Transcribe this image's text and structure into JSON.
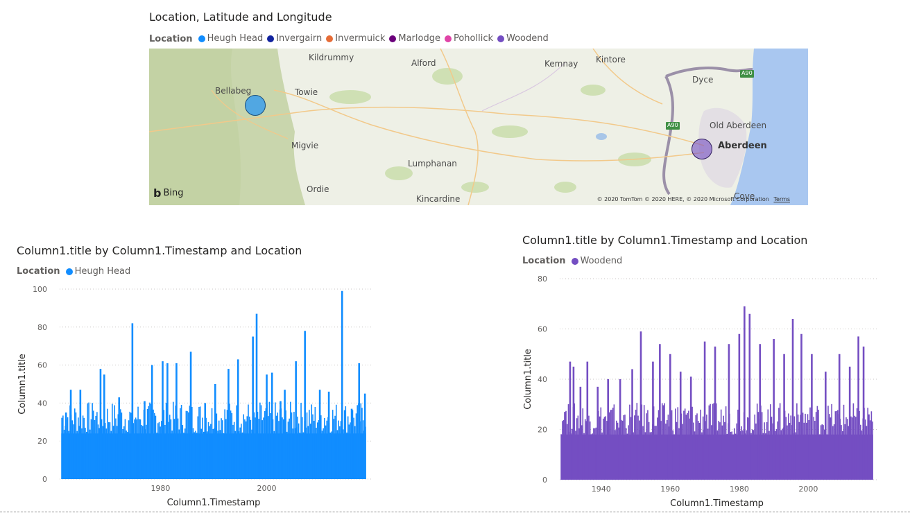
{
  "map_visual": {
    "title": "Location, Latitude and Longitude",
    "legend_title": "Location",
    "legend": [
      {
        "label": "Heugh Head",
        "color": "#118DFF"
      },
      {
        "label": "Invergairn",
        "color": "#12239E"
      },
      {
        "label": "Invermuick",
        "color": "#E66C37"
      },
      {
        "label": "Marlodge",
        "color": "#6B007B"
      },
      {
        "label": "Pohollick",
        "color": "#E044A7"
      },
      {
        "label": "Woodend",
        "color": "#744EC2"
      }
    ],
    "places": [
      "Kildrummy",
      "Alford",
      "Kemnay",
      "Kintore",
      "Bellabeg",
      "Towie",
      "Dyce",
      "Old Aberdeen",
      "Aberdeen",
      "Migvie",
      "Lumphanan",
      "Ordie",
      "Kincardine",
      "Cove"
    ],
    "road_badges": [
      "A90",
      "A90"
    ],
    "bing_label": "Bing",
    "copyright": "© 2020 TomTom © 2020 HERE, © 2020 Microsoft Corporation",
    "terms": "Terms"
  },
  "chart_data": [
    {
      "type": "bar",
      "title": "Column1.title by Column1.Timestamp and Location",
      "legend_title": "Location",
      "series": [
        {
          "name": "Heugh Head",
          "color": "#118DFF"
        }
      ],
      "xlabel": "Column1.Timestamp",
      "ylabel": "Column1.title",
      "xlim": [
        1961,
        2019
      ],
      "ylim": [
        0,
        100
      ],
      "xticks": [
        1980,
        2000
      ],
      "yticks": [
        0,
        20,
        40,
        60,
        80,
        100
      ],
      "baseline": 24,
      "peaks": [
        {
          "x": 1962.2,
          "y": 35
        },
        {
          "x": 1963.1,
          "y": 47
        },
        {
          "x": 1964.9,
          "y": 47
        },
        {
          "x": 1967.3,
          "y": 36
        },
        {
          "x": 1968.7,
          "y": 58
        },
        {
          "x": 1969.4,
          "y": 55
        },
        {
          "x": 1972.2,
          "y": 43
        },
        {
          "x": 1974.7,
          "y": 82
        },
        {
          "x": 1977.0,
          "y": 41
        },
        {
          "x": 1978.4,
          "y": 60
        },
        {
          "x": 1980.4,
          "y": 62
        },
        {
          "x": 1981.3,
          "y": 61
        },
        {
          "x": 1983.0,
          "y": 61
        },
        {
          "x": 1985.7,
          "y": 67
        },
        {
          "x": 1988.4,
          "y": 40
        },
        {
          "x": 1990.3,
          "y": 50
        },
        {
          "x": 1992.8,
          "y": 58
        },
        {
          "x": 1994.6,
          "y": 63
        },
        {
          "x": 1997.4,
          "y": 75
        },
        {
          "x": 1998.1,
          "y": 87
        },
        {
          "x": 2000.0,
          "y": 55
        },
        {
          "x": 2001.0,
          "y": 56
        },
        {
          "x": 2002.6,
          "y": 41
        },
        {
          "x": 2003.4,
          "y": 47
        },
        {
          "x": 2005.5,
          "y": 62
        },
        {
          "x": 2007.2,
          "y": 78
        },
        {
          "x": 2010.0,
          "y": 47
        },
        {
          "x": 2011.7,
          "y": 46
        },
        {
          "x": 2014.2,
          "y": 99
        },
        {
          "x": 2016.0,
          "y": 37
        },
        {
          "x": 2017.4,
          "y": 61
        },
        {
          "x": 2018.5,
          "y": 45
        }
      ]
    },
    {
      "type": "bar",
      "title": "Column1.title by Column1.Timestamp and Location",
      "legend_title": "Location",
      "series": [
        {
          "name": "Woodend",
          "color": "#744EC2"
        }
      ],
      "xlabel": "Column1.Timestamp",
      "ylabel": "Column1.title",
      "xlim": [
        1928,
        2019
      ],
      "ylim": [
        0,
        80
      ],
      "xticks": [
        1940,
        1960,
        1980,
        2000
      ],
      "yticks": [
        0,
        20,
        40,
        60,
        80
      ],
      "baseline": 18,
      "peaks": [
        {
          "x": 1929.5,
          "y": 27
        },
        {
          "x": 1931.0,
          "y": 47
        },
        {
          "x": 1932.0,
          "y": 45
        },
        {
          "x": 1934.0,
          "y": 37
        },
        {
          "x": 1936.0,
          "y": 47
        },
        {
          "x": 1939.0,
          "y": 37
        },
        {
          "x": 1942.0,
          "y": 40
        },
        {
          "x": 1945.5,
          "y": 40
        },
        {
          "x": 1949.0,
          "y": 44
        },
        {
          "x": 1951.5,
          "y": 59
        },
        {
          "x": 1955.0,
          "y": 47
        },
        {
          "x": 1957.0,
          "y": 54
        },
        {
          "x": 1960.0,
          "y": 50
        },
        {
          "x": 1963.0,
          "y": 43
        },
        {
          "x": 1966.0,
          "y": 41
        },
        {
          "x": 1970.0,
          "y": 55
        },
        {
          "x": 1973.0,
          "y": 53
        },
        {
          "x": 1977.0,
          "y": 54
        },
        {
          "x": 1980.0,
          "y": 58
        },
        {
          "x": 1981.5,
          "y": 69
        },
        {
          "x": 1983.0,
          "y": 66
        },
        {
          "x": 1986.0,
          "y": 54
        },
        {
          "x": 1990.0,
          "y": 56
        },
        {
          "x": 1993.0,
          "y": 50
        },
        {
          "x": 1995.5,
          "y": 64
        },
        {
          "x": 1998.0,
          "y": 58
        },
        {
          "x": 2001.0,
          "y": 50
        },
        {
          "x": 2005.0,
          "y": 43
        },
        {
          "x": 2009.0,
          "y": 50
        },
        {
          "x": 2012.0,
          "y": 45
        },
        {
          "x": 2014.5,
          "y": 57
        },
        {
          "x": 2016.0,
          "y": 53
        },
        {
          "x": 2017.5,
          "y": 26
        }
      ]
    }
  ]
}
